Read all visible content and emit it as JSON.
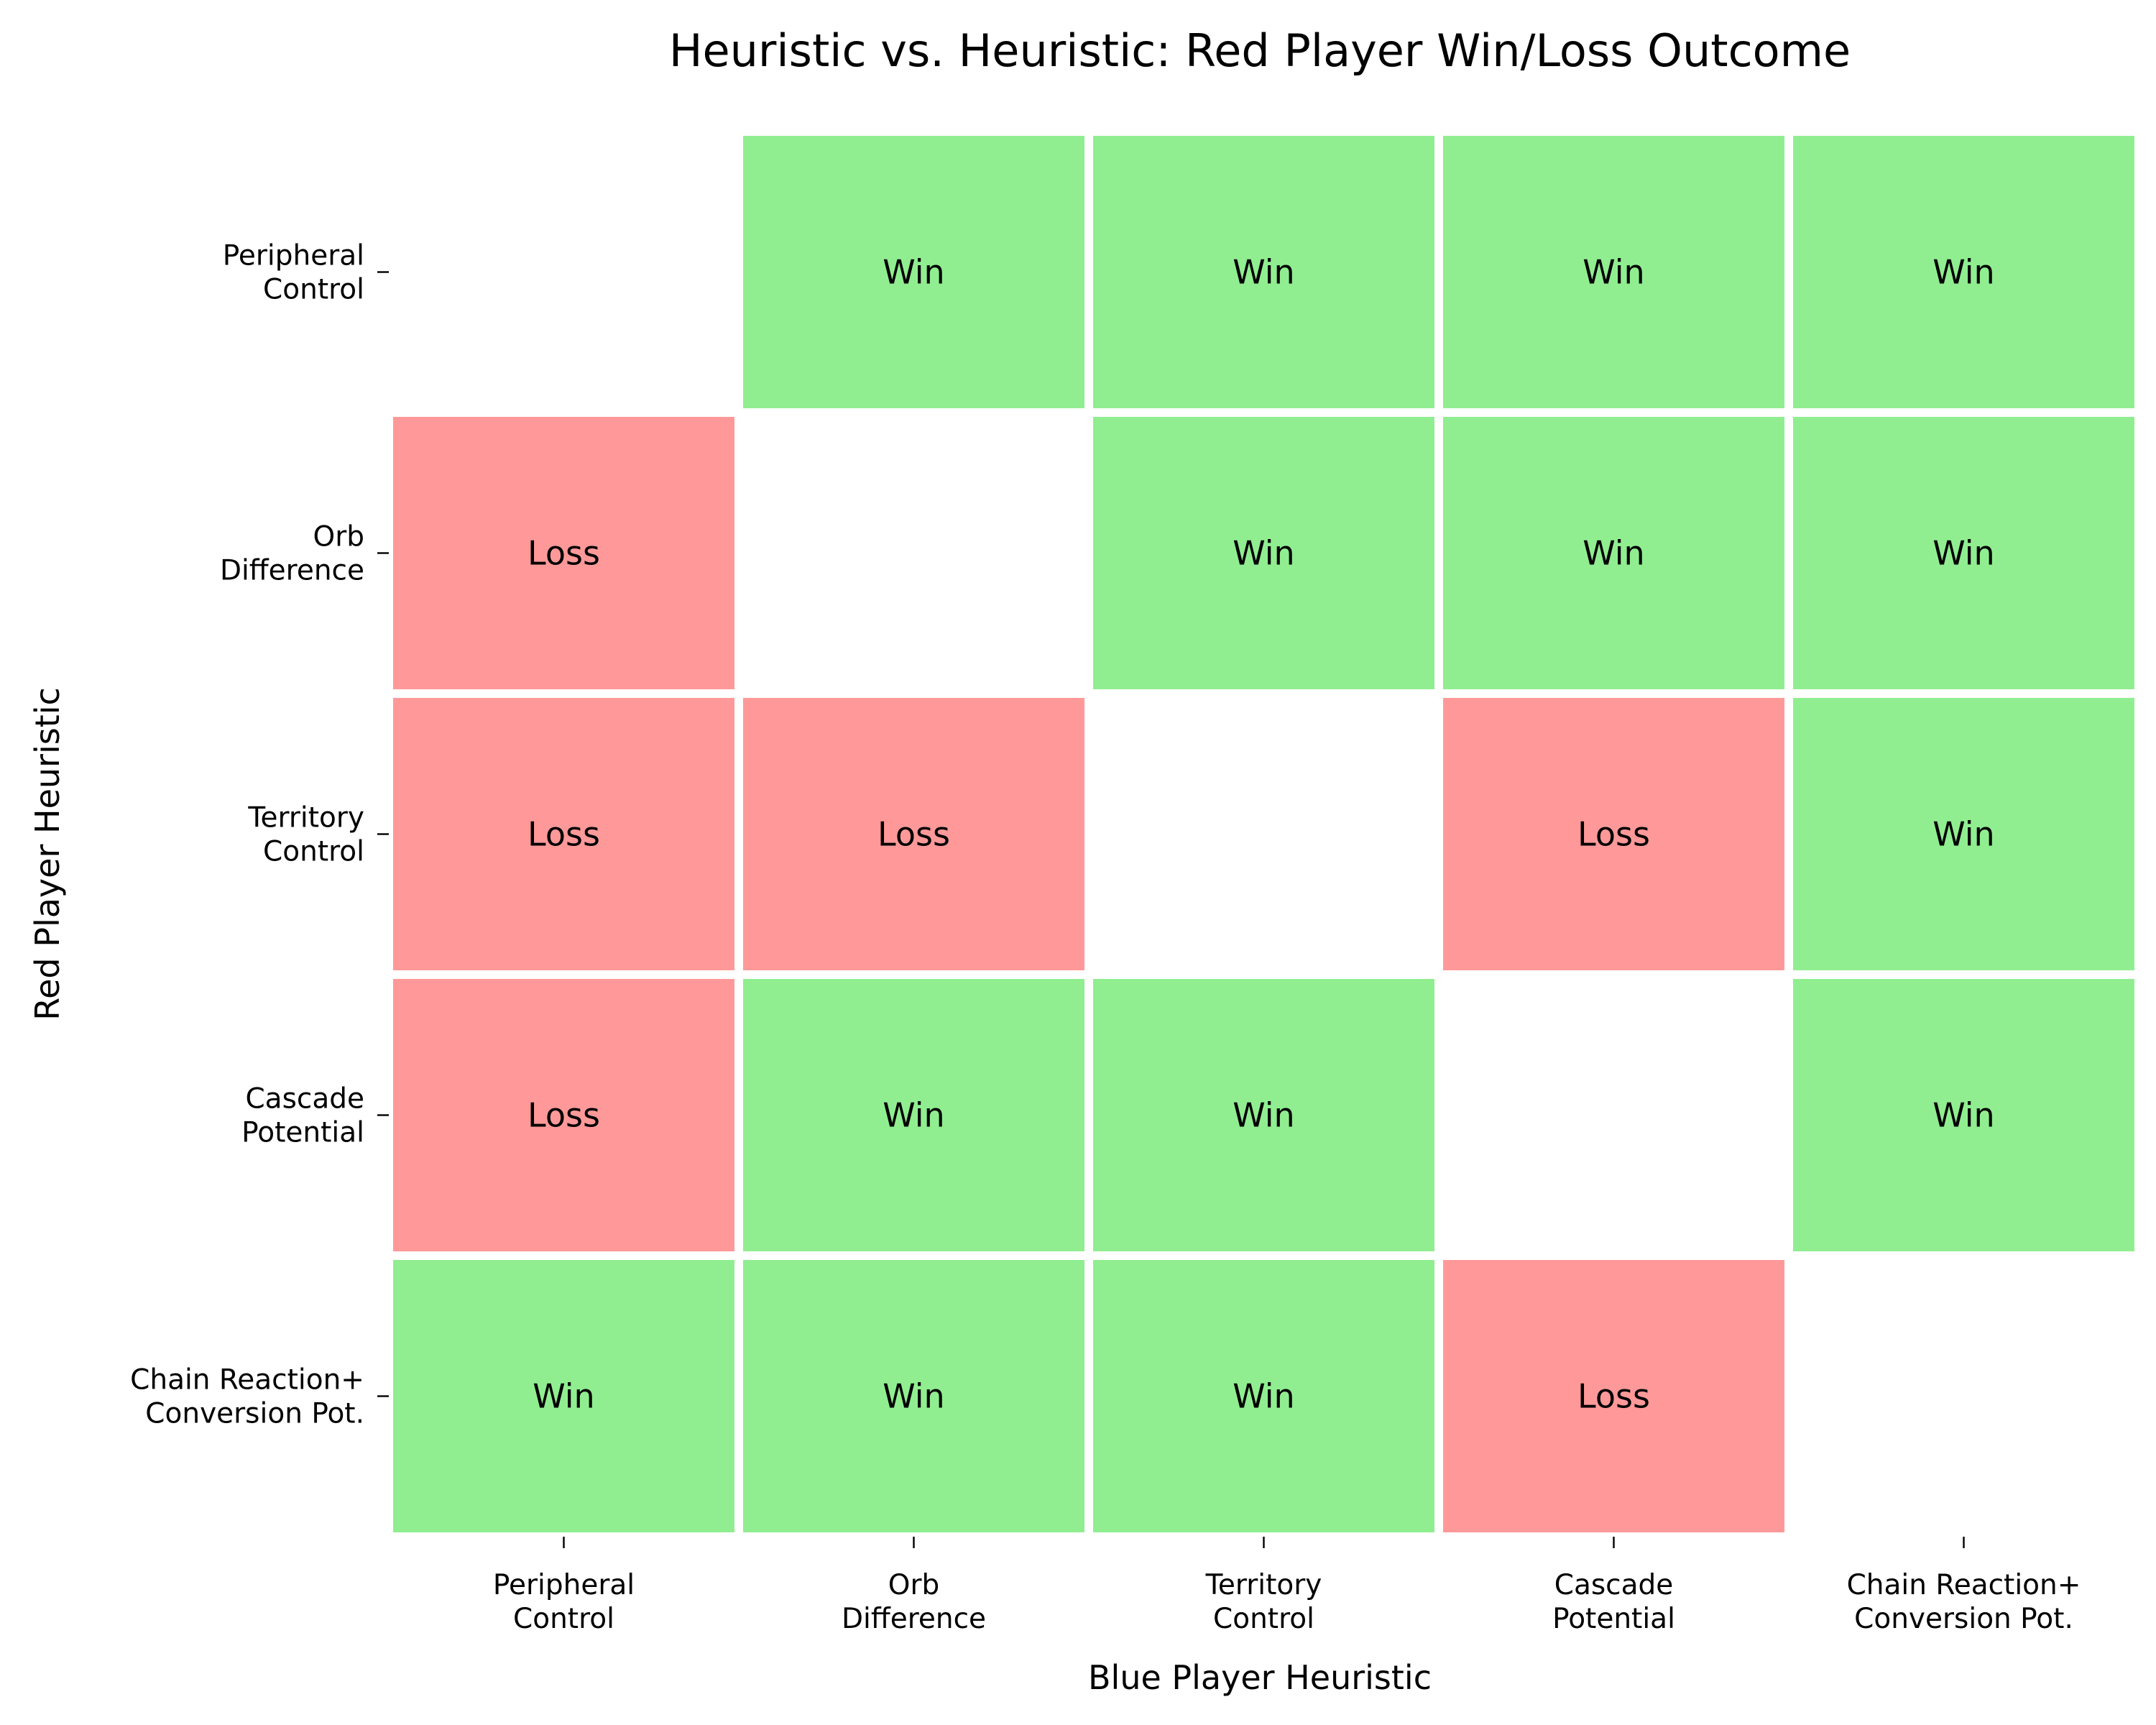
{
  "chart_data": {
    "type": "heatmap",
    "title": "Heuristic vs. Heuristic: Red Player Win/Loss Outcome",
    "xlabel": "Blue Player Heuristic",
    "ylabel": "Red Player Heuristic",
    "x_categories": [
      [
        "Peripheral",
        "Control"
      ],
      [
        "Orb",
        "Difference"
      ],
      [
        "Territory",
        "Control"
      ],
      [
        "Cascade",
        "Potential"
      ],
      [
        "Chain Reaction+",
        "Conversion Pot."
      ]
    ],
    "y_categories": [
      [
        "Peripheral",
        "Control"
      ],
      [
        "Orb",
        "Difference"
      ],
      [
        "Territory",
        "Control"
      ],
      [
        "Cascade",
        "Potential"
      ],
      [
        "Chain Reaction+",
        "Conversion Pot."
      ]
    ],
    "matrix": [
      [
        "",
        "Win",
        "Win",
        "Win",
        "Win"
      ],
      [
        "Loss",
        "",
        "Win",
        "Win",
        "Win"
      ],
      [
        "Loss",
        "Loss",
        "",
        "Loss",
        "Win"
      ],
      [
        "Loss",
        "Win",
        "Win",
        "",
        "Win"
      ],
      [
        "Win",
        "Win",
        "Win",
        "Loss",
        ""
      ]
    ],
    "colors": {
      "Win": "#90ee90",
      "Loss": "#ff9999"
    },
    "grid": false
  }
}
